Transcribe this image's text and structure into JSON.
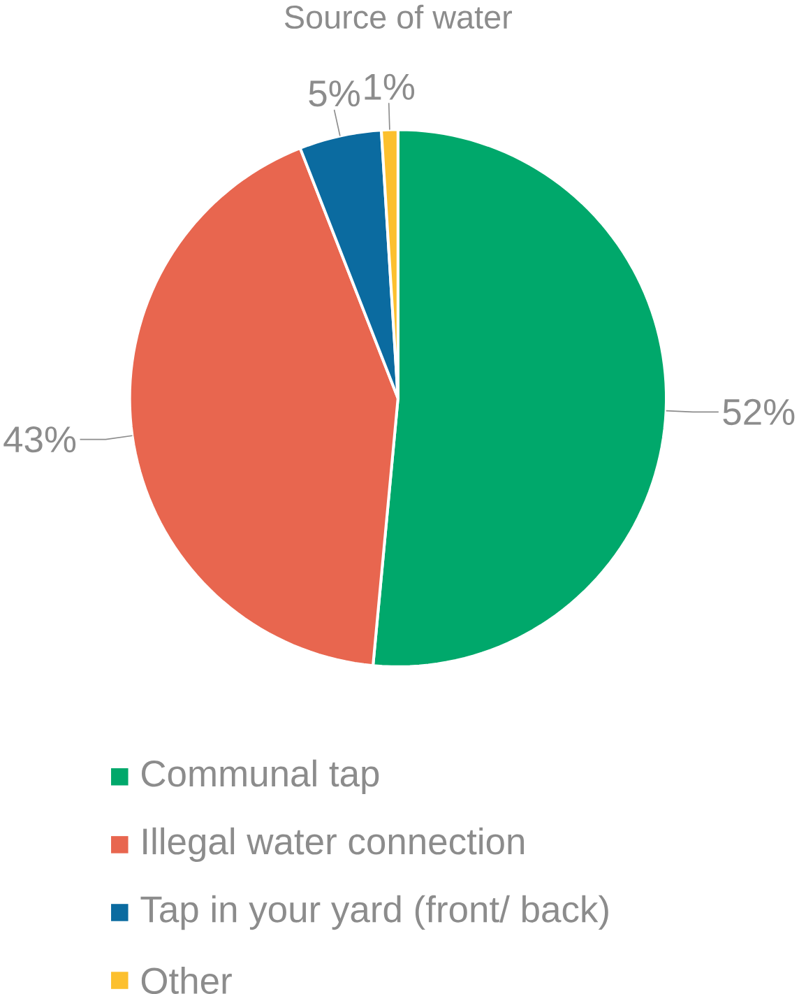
{
  "chart_data": {
    "type": "pie",
    "title": "Source of water",
    "categories": [
      "Communal tap",
      "Illegal water connection",
      "Tap in your yard (front/ back)",
      "Other"
    ],
    "values": [
      52,
      43,
      5,
      1
    ],
    "colors": [
      "#00a86b",
      "#e8664f",
      "#0b6ba0",
      "#fcc02e"
    ],
    "value_labels": [
      "52%",
      "43%",
      "5%",
      "1%"
    ],
    "legend": "bottom"
  }
}
